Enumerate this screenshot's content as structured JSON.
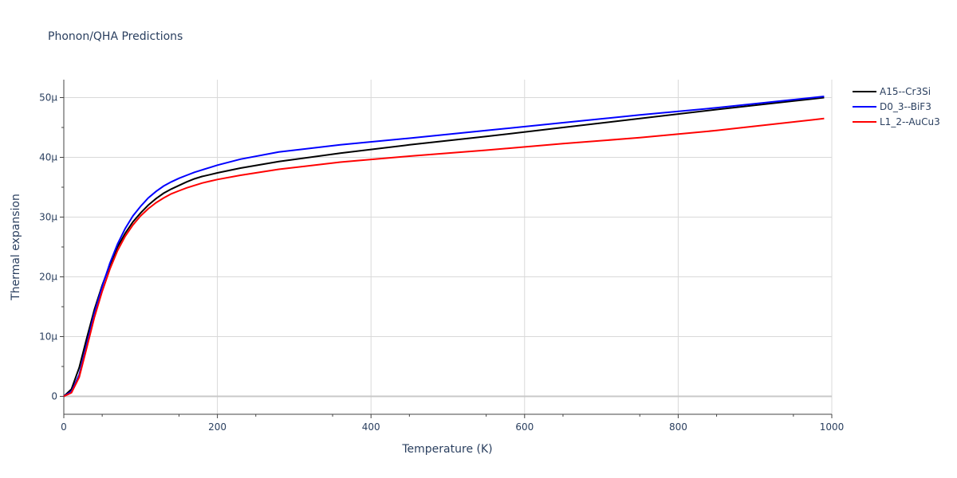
{
  "chart_data": {
    "type": "line",
    "title": "Phonon/QHA Predictions",
    "xlabel": "Temperature (K)",
    "ylabel": "Thermal expansion",
    "xlim": [
      0,
      1000
    ],
    "ylim": [
      -3e-06,
      5.3e-05
    ],
    "x_ticks": [
      0,
      200,
      400,
      600,
      800,
      1000
    ],
    "x_tick_labels": [
      "0",
      "200",
      "400",
      "600",
      "800",
      "1000"
    ],
    "y_ticks": [
      0,
      1e-05,
      2e-05,
      3e-05,
      4e-05,
      5e-05
    ],
    "y_tick_labels": [
      "0",
      "10μ",
      "20μ",
      "30μ",
      "40μ",
      "50μ"
    ],
    "grid": true,
    "legend_position": "top-right",
    "series": [
      {
        "name": "A15--Cr3Si",
        "color": "#000000",
        "x": [
          0,
          10,
          20,
          30,
          40,
          50,
          60,
          70,
          80,
          90,
          100,
          110,
          120,
          130,
          140,
          150,
          160,
          170,
          180,
          190,
          200,
          230,
          280,
          360,
          450,
          550,
          650,
          750,
          850,
          990
        ],
        "y": [
          0,
          1.2e-06,
          4.8e-06,
          9.8e-06,
          1.46e-05,
          1.86e-05,
          2.2e-05,
          2.5e-05,
          2.73e-05,
          2.92e-05,
          3.07e-05,
          3.2e-05,
          3.31e-05,
          3.4e-05,
          3.47e-05,
          3.53e-05,
          3.59e-05,
          3.64e-05,
          3.68e-05,
          3.71e-05,
          3.74e-05,
          3.82e-05,
          3.93e-05,
          4.07e-05,
          4.21e-05,
          4.35e-05,
          4.5e-05,
          4.65e-05,
          4.8e-05,
          5e-05
        ]
      },
      {
        "name": "D0_3--BiF3",
        "color": "#0000ff",
        "x": [
          0,
          10,
          20,
          30,
          40,
          50,
          60,
          70,
          80,
          90,
          100,
          110,
          120,
          130,
          140,
          150,
          160,
          170,
          180,
          190,
          200,
          230,
          280,
          360,
          450,
          550,
          650,
          750,
          850,
          990
        ],
        "y": [
          0,
          8e-07,
          3.6e-06,
          8.8e-06,
          1.4e-05,
          1.84e-05,
          2.23e-05,
          2.55e-05,
          2.81e-05,
          3.02e-05,
          3.18e-05,
          3.32e-05,
          3.43e-05,
          3.52e-05,
          3.59e-05,
          3.65e-05,
          3.7e-05,
          3.75e-05,
          3.79e-05,
          3.83e-05,
          3.87e-05,
          3.97e-05,
          4.09e-05,
          4.21e-05,
          4.32e-05,
          4.45e-05,
          4.58e-05,
          4.71e-05,
          4.83e-05,
          5.02e-05
        ]
      },
      {
        "name": "L1_2--AuCu3",
        "color": "#ff0000",
        "x": [
          0,
          10,
          20,
          30,
          40,
          50,
          60,
          70,
          80,
          90,
          100,
          110,
          120,
          130,
          140,
          150,
          160,
          170,
          180,
          190,
          200,
          230,
          280,
          360,
          450,
          550,
          650,
          750,
          850,
          990
        ],
        "y": [
          0,
          6e-07,
          3.2e-06,
          8.2e-06,
          1.33e-05,
          1.76e-05,
          2.13e-05,
          2.44e-05,
          2.68e-05,
          2.87e-05,
          3.02e-05,
          3.14e-05,
          3.24e-05,
          3.32e-05,
          3.39e-05,
          3.44e-05,
          3.49e-05,
          3.53e-05,
          3.57e-05,
          3.6e-05,
          3.63e-05,
          3.7e-05,
          3.8e-05,
          3.92e-05,
          4.02e-05,
          4.12e-05,
          4.23e-05,
          4.33e-05,
          4.45e-05,
          4.65e-05
        ]
      }
    ]
  }
}
